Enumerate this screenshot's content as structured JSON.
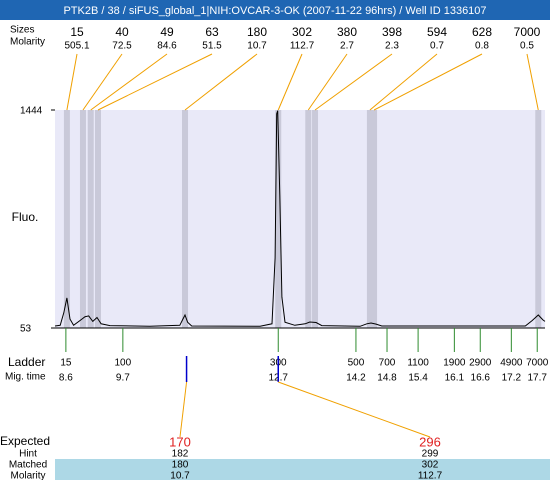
{
  "chart_data": {
    "type": "electropherogram",
    "title": "PTK2B / 38 / siFUS_global_1|NIH:OVCAR-3-OK (2007-11-22 96hrs) / Well ID 1336107",
    "y_label": "Fluo.",
    "ylim": [
      53,
      1444
    ],
    "yticks": [
      53,
      1444
    ],
    "xlim": [
      8.39,
      17.85
    ],
    "trace": {
      "color": "#000000",
      "x": [
        8.39,
        8.49,
        8.56,
        8.62,
        8.68,
        8.75,
        8.87,
        8.97,
        9.04,
        9.12,
        9.2,
        9.28,
        9.45,
        10.22,
        10.8,
        10.86,
        10.9,
        10.95,
        11.03,
        12.35,
        12.58,
        12.64,
        12.67,
        12.69,
        12.73,
        12.77,
        12.83,
        13.02,
        13.22,
        13.31,
        13.43,
        13.54,
        14.28,
        14.41,
        14.49,
        14.59,
        14.7,
        17.47,
        17.6,
        17.72,
        17.81,
        17.85
      ],
      "values": [
        66,
        70,
        150,
        245,
        110,
        70,
        100,
        125,
        130,
        95,
        120,
        80,
        68,
        64,
        70,
        110,
        136,
        90,
        66,
        64,
        80,
        500,
        1420,
        1440,
        900,
        250,
        90,
        70,
        80,
        91,
        88,
        68,
        64,
        80,
        85,
        78,
        66,
        66,
        100,
        136,
        105,
        95
      ]
    },
    "peaks": {
      "row_labels": [
        "Sizes",
        "Molarity"
      ],
      "sizes": [
        15,
        40,
        49,
        63,
        180,
        302,
        380,
        398,
        594,
        628,
        7000
      ],
      "molarity": [
        505.1,
        72.5,
        84.6,
        51.5,
        10.7,
        112.7,
        2.7,
        2.3,
        0.7,
        0.8,
        0.5
      ],
      "x": [
        8.62,
        8.93,
        9.08,
        9.22,
        10.9,
        12.7,
        13.28,
        13.41,
        14.47,
        14.55,
        17.72
      ]
    },
    "ladder": {
      "row_labels": [
        "Ladder",
        "Mig. time"
      ],
      "sizes": [
        15,
        100,
        300,
        500,
        700,
        1100,
        1900,
        2900,
        4900,
        7000
      ],
      "x": [
        8.6,
        9.7,
        12.7,
        14.2,
        14.8,
        15.4,
        16.1,
        16.6,
        17.2,
        17.7
      ]
    },
    "expected": {
      "row_labels": [
        "Expected",
        "Hint",
        "Matched",
        "Molarity"
      ],
      "values": [
        170,
        296
      ],
      "hint": [
        182,
        299
      ],
      "matched": [
        180,
        302
      ],
      "molarity": [
        10.7,
        112.7
      ],
      "x": [
        10.93,
        12.7
      ]
    }
  }
}
